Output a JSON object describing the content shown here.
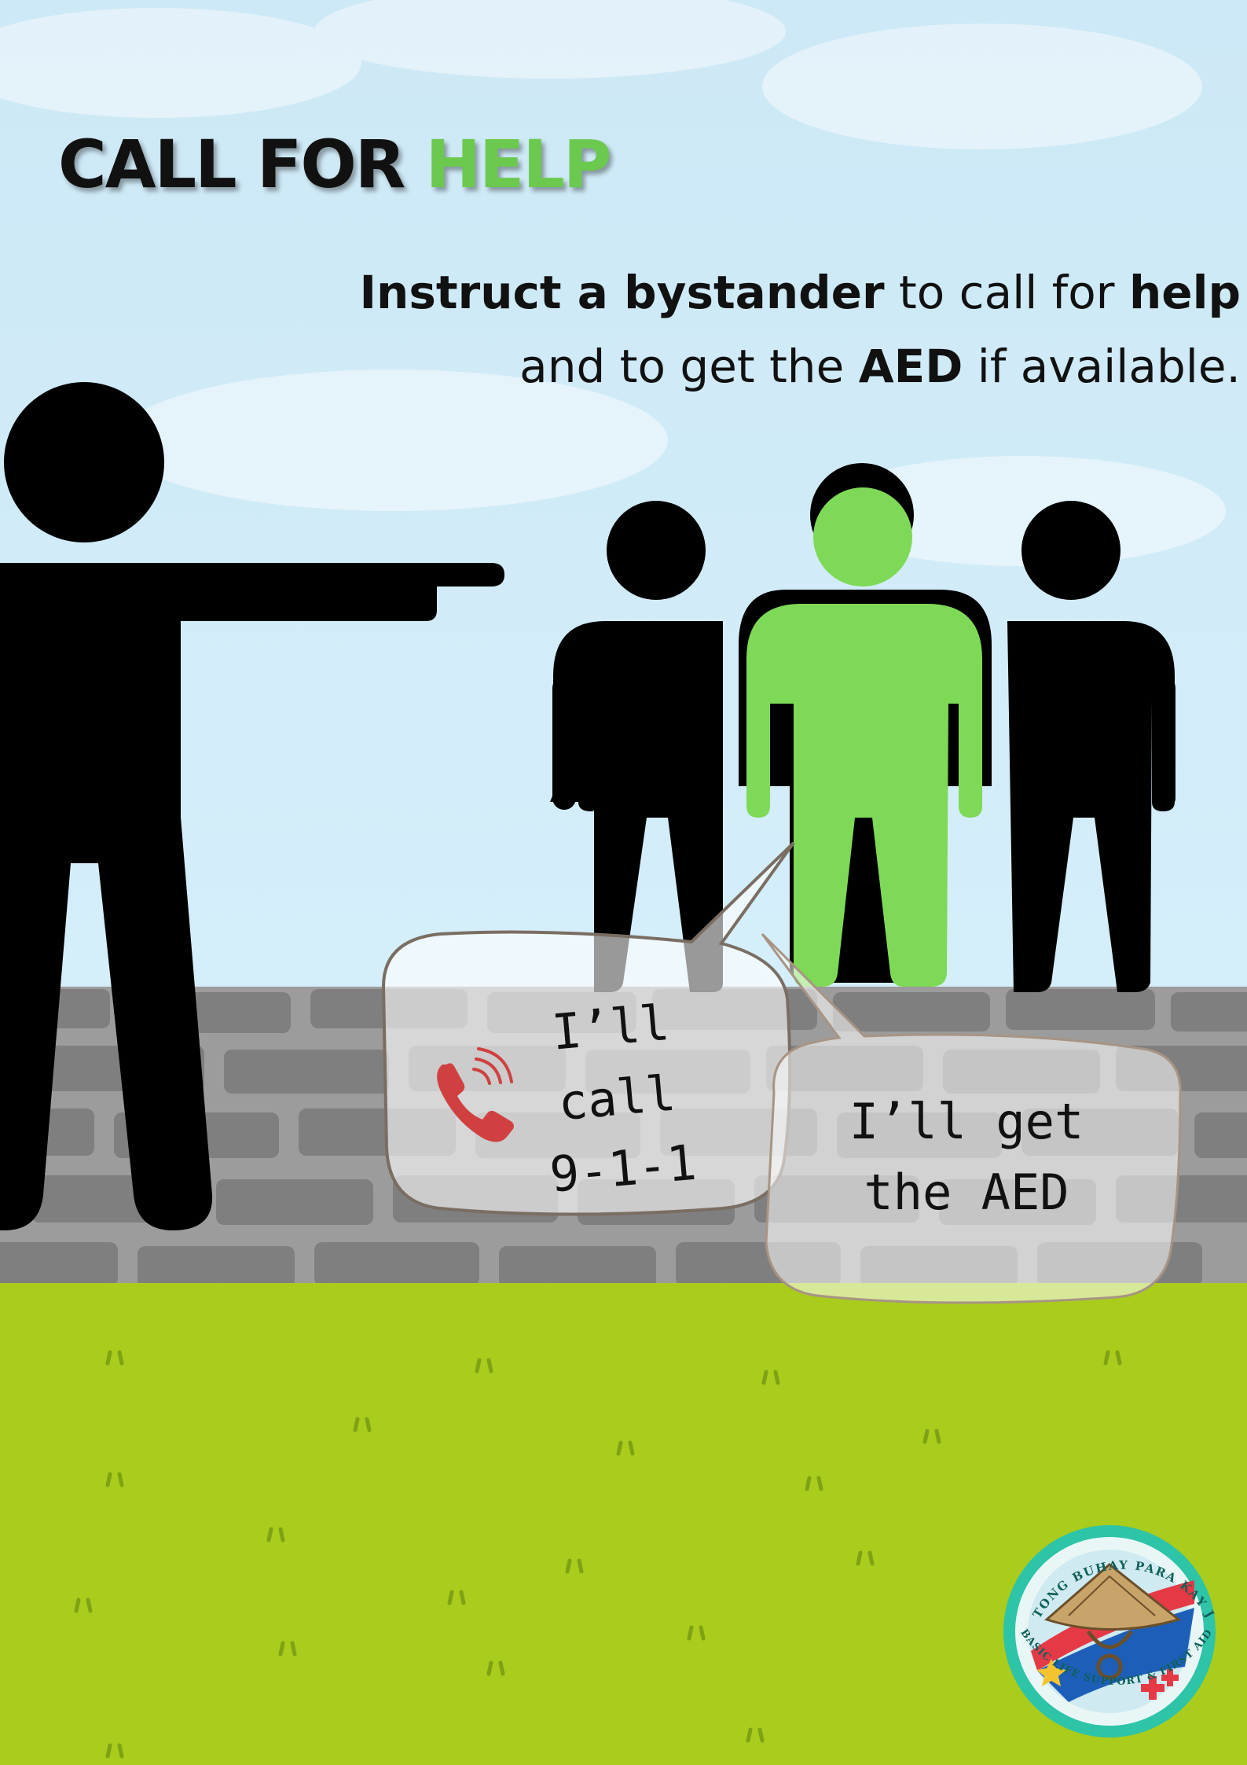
{
  "title": {
    "part1": "CALL FOR ",
    "part2": "HELP"
  },
  "instruction": {
    "line1": {
      "b1": "Instruct a bystander",
      "t1": " to call for ",
      "b2": "help"
    },
    "line2": {
      "t1": "and to get the ",
      "b1": "AED",
      "t2": " if available."
    }
  },
  "bubbles": {
    "call": {
      "line1": "I’ll call",
      "line2": "9-1-1"
    },
    "aed": {
      "line1": "I’ll get",
      "line2": "the AED"
    }
  },
  "icons": {
    "phone": "phone-ringing-icon",
    "logo": "dugtong-buhay-logo"
  },
  "logo_text": {
    "top": "DUGTONG BUHAY PARA KAY JUAN",
    "bottom": "BASIC LIFE SUPPORT & FIRST AID"
  },
  "colors": {
    "sky": "#d3ecf8",
    "grass": "#a8cc1c",
    "wall": "#9a9a9a",
    "brick": "#7d7d7d",
    "accent_green": "#7ed957",
    "figure": "#000000",
    "phone": "#d04040"
  }
}
